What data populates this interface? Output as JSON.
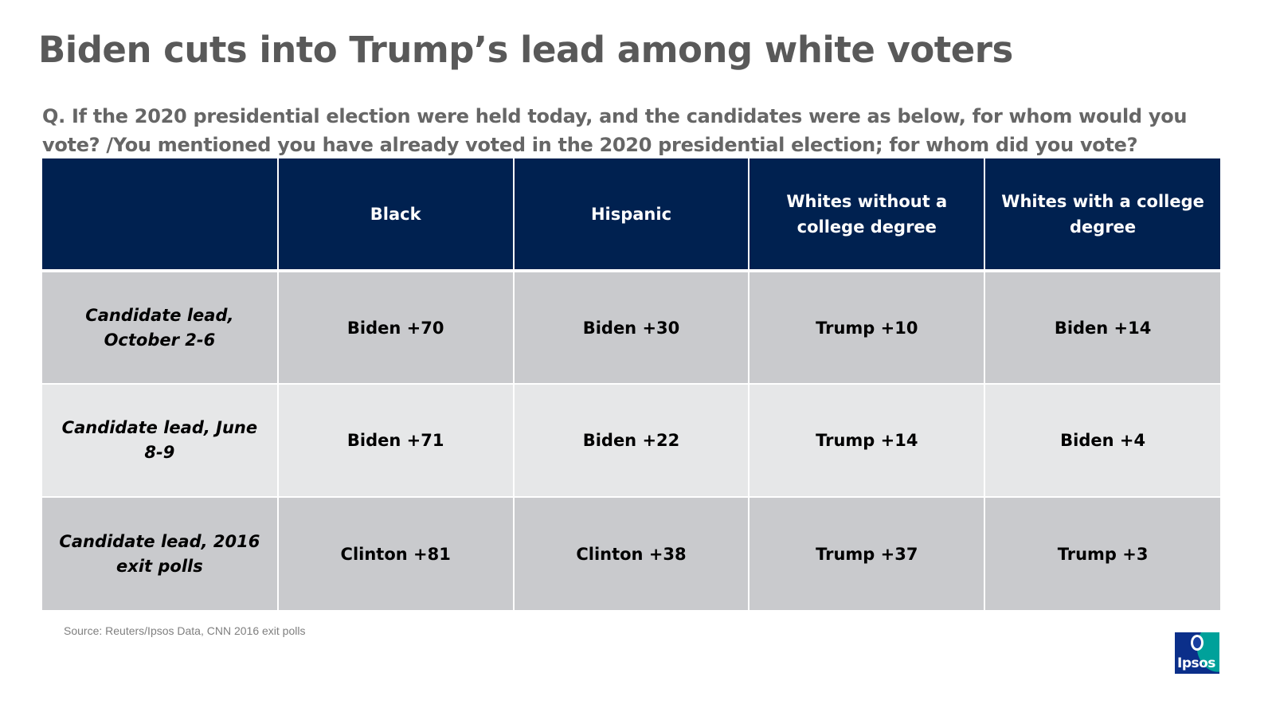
{
  "title": "Biden cuts into Trump’s lead among white voters",
  "question": "Q. If the 2020 presidential election were held today, and the candidates were as below, for whom would you vote? /You mentioned you have already voted in the 2020 presidential election; for whom did you vote?",
  "table": {
    "columns": [
      "",
      "Black",
      "Hispanic",
      "Whites without a college degree",
      "Whites with a college degree"
    ],
    "rows": [
      {
        "label": "Candidate lead, October 2-6",
        "values": [
          "Biden +70",
          "Biden +30",
          "Trump +10",
          "Biden +14"
        ]
      },
      {
        "label": "Candidate lead, June 8-9",
        "values": [
          "Biden +71",
          "Biden +22",
          "Trump +14",
          "Biden +4"
        ]
      },
      {
        "label": "Candidate lead, 2016 exit polls",
        "values": [
          "Clinton +81",
          "Clinton +38",
          "Trump +37",
          "Trump +3"
        ]
      }
    ]
  },
  "source": "Source: Reuters/Ipsos Data, CNN 2016 exit polls",
  "logo": {
    "text": "Ipsos",
    "colors": {
      "primary": "#0b2f8a",
      "accent": "#00a19a"
    }
  },
  "colors": {
    "header_bg": "#002150",
    "row_dark": "#c9cacd",
    "row_light": "#e6e7e8",
    "title": "#595959"
  }
}
